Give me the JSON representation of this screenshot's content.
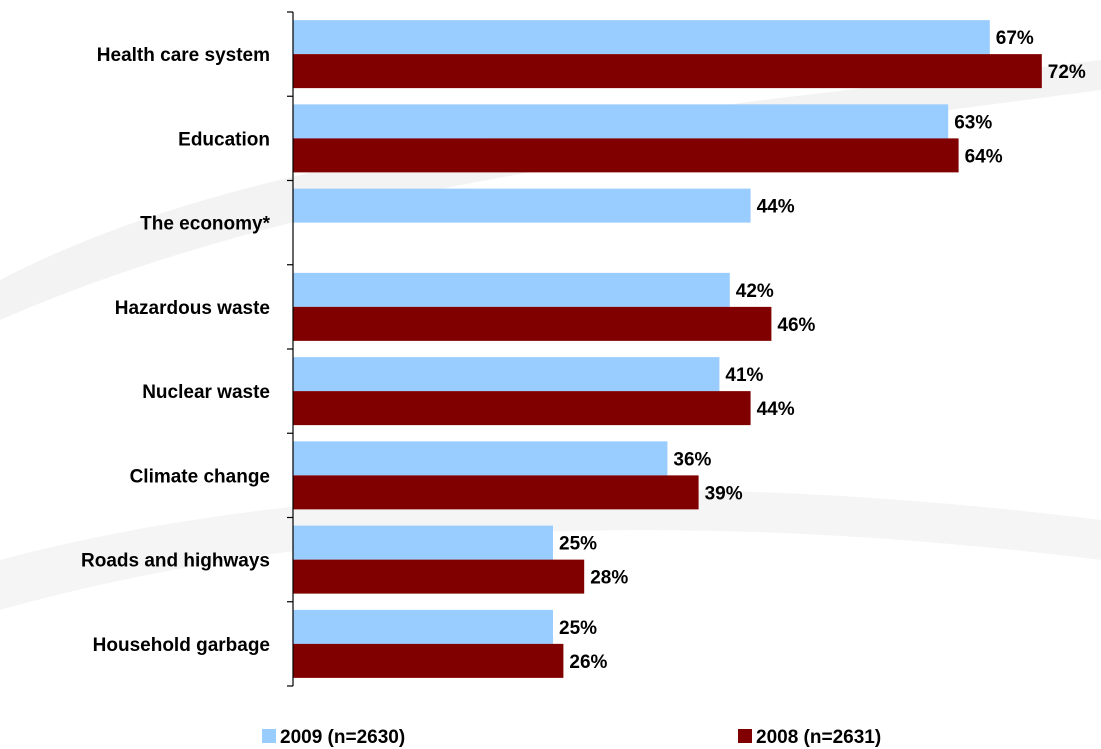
{
  "chart_data": {
    "type": "bar",
    "orientation": "horizontal",
    "categories": [
      "Health care system",
      "Education",
      "The economy*",
      "Hazardous waste",
      "Nuclear waste",
      "Climate change",
      "Roads and highways",
      "Household garbage"
    ],
    "series": [
      {
        "name": "2009 (n=2630)",
        "color": "#99ccff",
        "values": [
          67,
          63,
          44,
          42,
          41,
          36,
          25,
          25
        ],
        "labels": [
          "67%",
          "63%",
          "44%",
          "42%",
          "41%",
          "36%",
          "25%",
          "25%"
        ]
      },
      {
        "name": "2008 (n=2631)",
        "color": "#800000",
        "values": [
          72,
          64,
          null,
          46,
          44,
          39,
          28,
          26
        ],
        "labels": [
          "72%",
          "64%",
          "",
          "46%",
          "44%",
          "39%",
          "28%",
          "26%"
        ]
      }
    ],
    "xlim": [
      0,
      72
    ],
    "grid": false,
    "legend_position": "bottom"
  }
}
